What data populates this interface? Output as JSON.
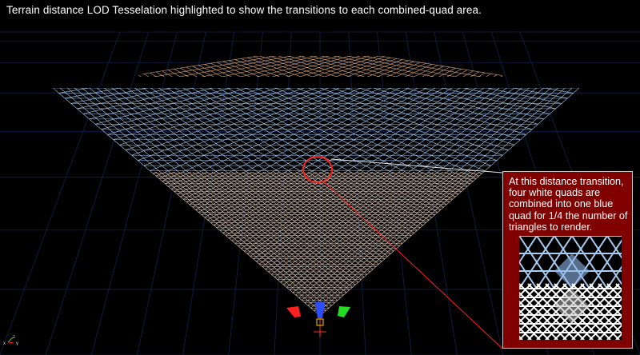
{
  "caption": "Terrain distance LOD Tesselation highlighted to show the transitions to each combined-quad area.",
  "callout": {
    "text": "At this distance transition, four white quads are combined into one blue quad for 1/4 the number of triangles to render."
  },
  "colors": {
    "background": "#000000",
    "near_mesh": "#e8d2bf",
    "mid_mesh": "#a9cdf2",
    "far_mesh": "#d9a57a",
    "highlight": "#ff1a1a",
    "callout_bg": "#800000",
    "axis_x": "#ff2020",
    "axis_y": "#22dd22",
    "axis_z": "#2a4dff"
  },
  "viewport": {
    "gizmo": [
      "x-axis-arrow",
      "y-axis-arrow",
      "z-axis-arrow"
    ],
    "axis_indicator": [
      "X",
      "Y",
      "Z"
    ]
  }
}
